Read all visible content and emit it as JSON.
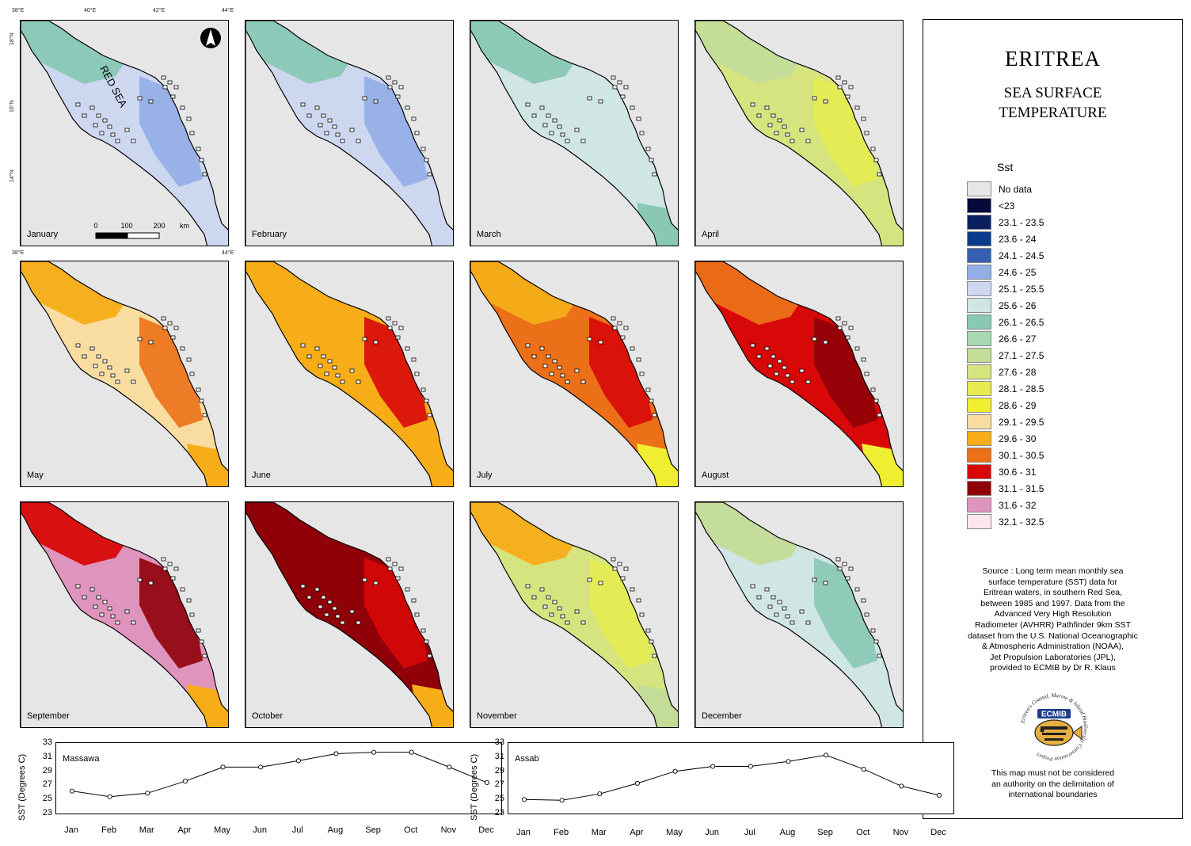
{
  "title": "ERITREA",
  "subtitle_line1": "SEA SURFACE",
  "subtitle_line2": "TEMPERATURE",
  "legend": {
    "title": "Sst",
    "items": [
      {
        "label": "No data",
        "color": "#e6e6e6"
      },
      {
        "label": "<23",
        "color": "#050a3a"
      },
      {
        "label": "23.1 - 23.5",
        "color": "#0a1f5e"
      },
      {
        "label": "23.6 - 24",
        "color": "#0a3a8c"
      },
      {
        "label": "24.1 - 24.5",
        "color": "#3560b0"
      },
      {
        "label": "24.6 - 25",
        "color": "#92aee6"
      },
      {
        "label": "25.1 - 25.5",
        "color": "#cdd7f0"
      },
      {
        "label": "25.6 - 26",
        "color": "#cfe6e4"
      },
      {
        "label": "26.1 - 26.5",
        "color": "#88c8b4"
      },
      {
        "label": "26.6 - 27",
        "color": "#a7d8b2"
      },
      {
        "label": "27.1 - 27.5",
        "color": "#c3dc98"
      },
      {
        "label": "27.6 - 28",
        "color": "#d6e480"
      },
      {
        "label": "28.1 - 28.5",
        "color": "#e6ec50"
      },
      {
        "label": "28.6 - 29",
        "color": "#f0ee30"
      },
      {
        "label": "29.1 - 29.5",
        "color": "#f9dda0"
      },
      {
        "label": "29.6 - 30",
        "color": "#f6ad18"
      },
      {
        "label": "30.1 - 30.5",
        "color": "#ec7018"
      },
      {
        "label": "30.6 - 31",
        "color": "#d80808"
      },
      {
        "label": "31.1 - 31.5",
        "color": "#8f0008"
      },
      {
        "label": "31.6 - 32",
        "color": "#de94bc"
      },
      {
        "label": "32.1 - 32.5",
        "color": "#fbe6ee"
      }
    ]
  },
  "source_lines": [
    "Source : Long term mean monthly sea",
    "surface temperature (SST) data for",
    "Eritrean waters, in southern Red Sea,",
    "between 1985 and 1997. Data from the",
    "Advanced Very High Resolution",
    "Radiometer (AVHRR) Pathfinder 9km SST",
    "dataset from the U.S. National Oceanographic",
    "& Atmospheric Administration (NOAA),",
    "Jet Propulsion Laboratories (JPL),",
    "provided to ECMIB by Dr R. Klaus"
  ],
  "logo_text": "ECMIB",
  "logo_ring_text": "Eritrea's Coastal, Marine & Island Biodiversity Conservation Project",
  "disclaimer_lines": [
    "This map must not be considered",
    "an authority on the delimitation of",
    "international boundaries"
  ],
  "map_annotations": {
    "sea_label": "RED SEA",
    "scale_labels": [
      "0",
      "100",
      "200",
      "km"
    ],
    "lon_top": [
      "38°E",
      "40°E",
      "42°E",
      "44°E"
    ],
    "lon_mid": [
      "38°E",
      "44°E"
    ],
    "lat_left": [
      "18°N",
      "16°N",
      "14°N"
    ]
  },
  "months": [
    {
      "name": "January",
      "base": "#cdd7f0",
      "north": "#88c8b4",
      "accent": "#92aee6",
      "south": "#cdd7f0"
    },
    {
      "name": "February",
      "base": "#cdd7f0",
      "north": "#88c8b4",
      "accent": "#92aee6",
      "south": "#cdd7f0"
    },
    {
      "name": "March",
      "base": "#cfe6e4",
      "north": "#88c8b4",
      "accent": "#cfe6e4",
      "south": "#88c8b4"
    },
    {
      "name": "April",
      "base": "#d6e480",
      "north": "#c3dc98",
      "accent": "#e6ec50",
      "south": "#d6e480"
    },
    {
      "name": "May",
      "base": "#f9dda0",
      "north": "#f6ad18",
      "accent": "#ec7018",
      "south": "#f6ad18"
    },
    {
      "name": "June",
      "base": "#f6ad18",
      "north": "#f6ad18",
      "accent": "#d80808",
      "south": "#f6ad18"
    },
    {
      "name": "July",
      "base": "#ec7018",
      "north": "#f6ad18",
      "accent": "#d80808",
      "south": "#f0ee30"
    },
    {
      "name": "August",
      "base": "#d80808",
      "north": "#ec7018",
      "accent": "#8f0008",
      "south": "#f0ee30"
    },
    {
      "name": "September",
      "base": "#de94bc",
      "north": "#d80808",
      "accent": "#8f0008",
      "south": "#f6ad18"
    },
    {
      "name": "October",
      "base": "#8f0008",
      "north": "#8f0008",
      "accent": "#d80808",
      "south": "#f6ad18"
    },
    {
      "name": "November",
      "base": "#d6e480",
      "north": "#f6ad18",
      "accent": "#e6ec50",
      "south": "#c3dc98"
    },
    {
      "name": "December",
      "base": "#cfe6e4",
      "north": "#c3dc98",
      "accent": "#88c8b4",
      "south": "#cfe6e4"
    }
  ],
  "chart_data": [
    {
      "type": "line",
      "title": "Massawa",
      "ylabel": "SST (Degrees C)",
      "categories": [
        "Jan",
        "Feb",
        "Mar",
        "Apr",
        "May",
        "Jun",
        "Jul",
        "Aug",
        "Sep",
        "Oct",
        "Nov",
        "Dec"
      ],
      "values": [
        26.3,
        25.5,
        26.0,
        27.7,
        29.7,
        29.7,
        30.6,
        31.6,
        31.8,
        31.8,
        29.7,
        27.5
      ],
      "yticks": [
        "23",
        "25",
        "27",
        "29",
        "31",
        "33"
      ],
      "ylim": [
        23,
        33
      ]
    },
    {
      "type": "line",
      "title": "Assab",
      "ylabel": "SST (Degrees C)",
      "categories": [
        "Jan",
        "Feb",
        "Mar",
        "Apr",
        "May",
        "Jun",
        "Jul",
        "Aug",
        "Sep",
        "Oct",
        "Nov",
        "Dec"
      ],
      "values": [
        25.1,
        25.0,
        25.9,
        27.4,
        29.1,
        29.8,
        29.8,
        30.5,
        31.4,
        29.4,
        27.0,
        25.7
      ],
      "yticks": [
        "23",
        "25",
        "27",
        "29",
        "31",
        "33"
      ],
      "ylim": [
        23,
        33
      ]
    }
  ]
}
